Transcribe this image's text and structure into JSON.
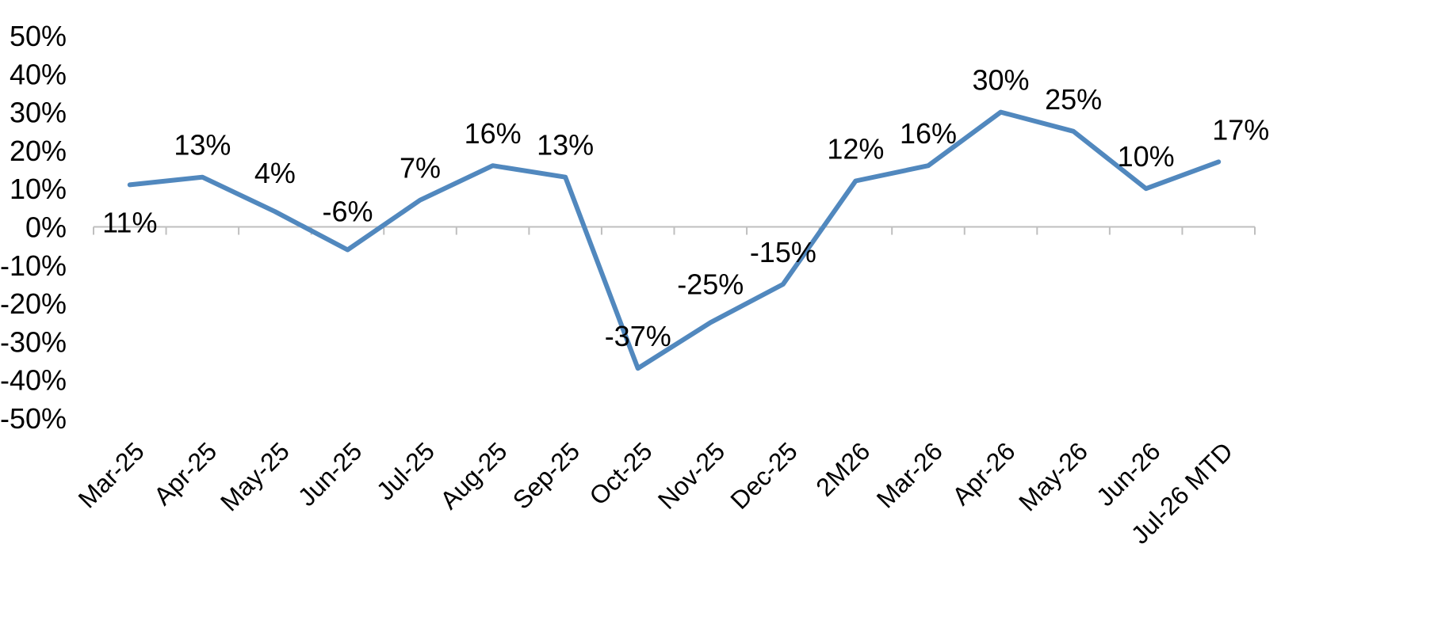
{
  "chart_data": {
    "type": "line",
    "categories": [
      "Mar-25",
      "Apr-25",
      "May-25",
      "Jun-25",
      "Jul-25",
      "Aug-25",
      "Sep-25",
      "Oct-25",
      "Nov-25",
      "Dec-25",
      "2M26",
      "Mar-26",
      "Apr-26",
      "May-26",
      "Jun-26",
      "Jul-26 MTD"
    ],
    "series": [
      {
        "values": [
          11,
          13,
          4,
          -6,
          7,
          16,
          13,
          -37,
          -25,
          -15,
          12,
          16,
          30,
          25,
          10,
          17
        ],
        "labels": [
          "11%",
          "13%",
          "4%",
          "-6%",
          "7%",
          "16%",
          "13%",
          "-37%",
          "-25%",
          "-15%",
          "12%",
          "16%",
          "30%",
          "25%",
          "10%",
          "17%"
        ],
        "color": "#5188BE"
      }
    ],
    "y_ticks": [
      "50%",
      "40%",
      "30%",
      "20%",
      "10%",
      "0%",
      "-10%",
      "-20%",
      "-30%",
      "-40%",
      "-50%"
    ],
    "ylim": [
      -50,
      50
    ],
    "grid": false,
    "legend": "none",
    "title": "",
    "xlabel": "",
    "ylabel": ""
  }
}
